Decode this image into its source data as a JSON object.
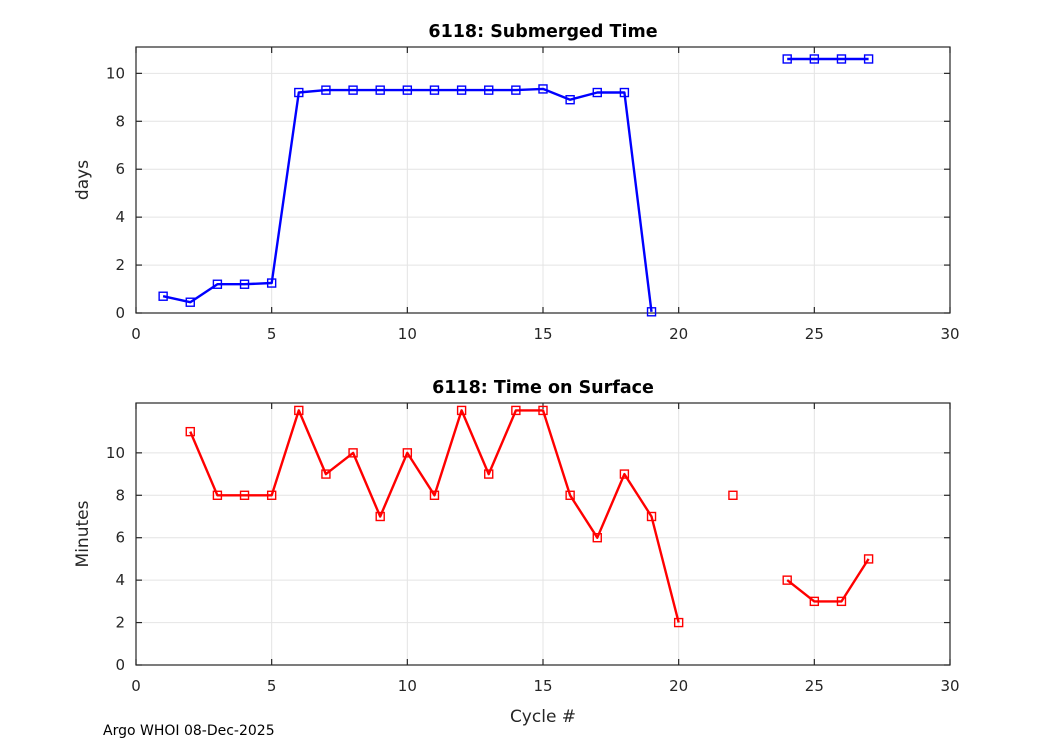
{
  "figure": {
    "footer": "Argo WHOI 08-Dec-2025",
    "background": "#ffffff"
  },
  "chart_data": [
    {
      "type": "line",
      "title": "6118: Submerged Time",
      "xlabel": "",
      "ylabel": "days",
      "xlim": [
        0,
        30
      ],
      "ylim": [
        0,
        11.1
      ],
      "xticks": [
        0,
        5,
        10,
        15,
        20,
        25,
        30
      ],
      "yticks": [
        0,
        2,
        4,
        6,
        8,
        10
      ],
      "grid": true,
      "legend": "none",
      "series": [
        {
          "name": "submerged-days",
          "color": "#0000ff",
          "marker": "square",
          "segments": [
            {
              "x": [
                1,
                2,
                3,
                4,
                5,
                6,
                7,
                8,
                9,
                10,
                11,
                12,
                13,
                14,
                15,
                16,
                17,
                18,
                19
              ],
              "y": [
                0.7,
                0.45,
                1.2,
                1.2,
                1.25,
                9.2,
                9.3,
                9.3,
                9.3,
                9.3,
                9.3,
                9.3,
                9.3,
                9.3,
                9.35,
                8.9,
                9.2,
                9.2,
                0.05
              ]
            },
            {
              "x": [
                24,
                25,
                26,
                27
              ],
              "y": [
                10.6,
                10.6,
                10.6,
                10.6
              ]
            }
          ]
        }
      ]
    },
    {
      "type": "line",
      "title": "6118: Time on Surface",
      "xlabel": "Cycle #",
      "ylabel": "Minutes",
      "xlim": [
        0,
        30
      ],
      "ylim": [
        0,
        12.35
      ],
      "xticks": [
        0,
        5,
        10,
        15,
        20,
        25,
        30
      ],
      "yticks": [
        0,
        2,
        4,
        6,
        8,
        10
      ],
      "grid": true,
      "legend": "none",
      "series": [
        {
          "name": "surface-minutes",
          "color": "#ff0000",
          "marker": "square",
          "segments": [
            {
              "x": [
                2,
                3,
                4,
                5,
                6,
                7,
                8,
                9,
                10,
                11,
                12,
                13,
                14,
                15,
                16,
                17,
                18,
                19,
                20
              ],
              "y": [
                11,
                8,
                8,
                8,
                12,
                9,
                10,
                7,
                10,
                8,
                12,
                9,
                12,
                12,
                8,
                6,
                9,
                7,
                2
              ]
            },
            {
              "x": [
                22
              ],
              "y": [
                8
              ]
            },
            {
              "x": [
                24,
                25,
                26,
                27
              ],
              "y": [
                4,
                3,
                3,
                5
              ]
            }
          ]
        }
      ]
    }
  ]
}
